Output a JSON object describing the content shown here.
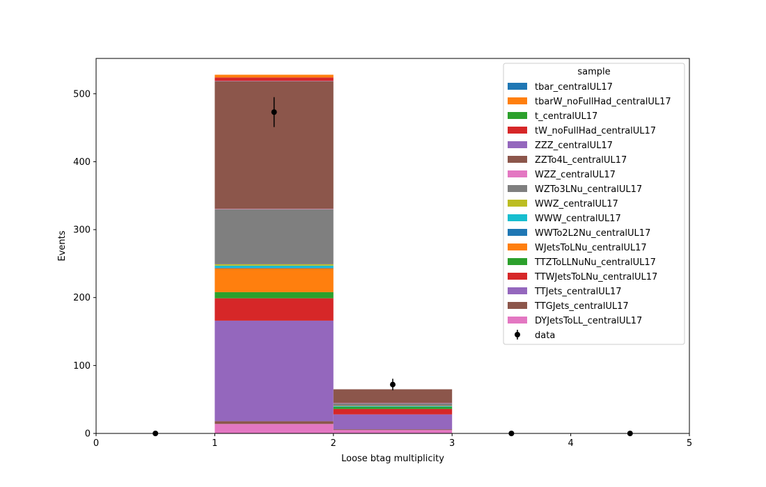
{
  "chart_data": {
    "type": "bar",
    "stacked": true,
    "xlabel": "Loose btag multiplicity",
    "ylabel": "Events",
    "xlim": [
      0,
      5
    ],
    "ylim": [
      0,
      552
    ],
    "xticks": [
      0,
      1,
      2,
      3,
      4,
      5
    ],
    "yticks": [
      0,
      100,
      200,
      300,
      400,
      500
    ],
    "grid": false,
    "bins": [
      [
        0,
        1
      ],
      [
        1,
        2
      ],
      [
        2,
        3
      ],
      [
        3,
        4
      ],
      [
        4,
        5
      ]
    ],
    "legend": {
      "title": "sample",
      "placement": "top-right"
    },
    "series": [
      {
        "name": "DYJetsToLL_centralUL17",
        "color": "#e377c2",
        "values": [
          0,
          14,
          5,
          0,
          0
        ]
      },
      {
        "name": "TTGJets_centralUL17",
        "color": "#8c564b",
        "values": [
          0,
          4,
          1,
          0,
          0
        ]
      },
      {
        "name": "TTJets_centralUL17",
        "color": "#9467bd",
        "values": [
          0,
          148,
          22,
          0,
          0
        ]
      },
      {
        "name": "TTWJetsToLNu_centralUL17",
        "color": "#d62728",
        "values": [
          0,
          33,
          8,
          0,
          0
        ]
      },
      {
        "name": "TTZToLLNuNu_centralUL17",
        "color": "#2ca02c",
        "values": [
          0,
          9,
          3,
          0,
          0
        ]
      },
      {
        "name": "WJetsToLNu_centralUL17",
        "color": "#ff7f0e",
        "values": [
          0,
          35,
          0,
          0,
          0
        ]
      },
      {
        "name": "WWTo2L2Nu_centralUL17",
        "color": "#1f77b4",
        "values": [
          0,
          1,
          0,
          0,
          0
        ]
      },
      {
        "name": "WWW_centralUL17",
        "color": "#17becf",
        "values": [
          0,
          3,
          1,
          0,
          0
        ]
      },
      {
        "name": "WWZ_centralUL17",
        "color": "#bcbd22",
        "values": [
          0,
          2,
          0.5,
          0,
          0
        ]
      },
      {
        "name": "WZTo3LNu_centralUL17",
        "color": "#7f7f7f",
        "values": [
          0,
          81,
          4,
          0,
          0
        ]
      },
      {
        "name": "WZZ_centralUL17",
        "color": "#e377c2",
        "values": [
          0,
          0.5,
          0.5,
          0,
          0
        ]
      },
      {
        "name": "ZZTo4L_centralUL17",
        "color": "#8c564b",
        "values": [
          0,
          188,
          20,
          0,
          0
        ]
      },
      {
        "name": "ZZZ_centralUL17",
        "color": "#9467bd",
        "values": [
          0,
          0.5,
          0,
          0,
          0
        ]
      },
      {
        "name": "tW_noFullHad_centralUL17",
        "color": "#d62728",
        "values": [
          0,
          5,
          0,
          0,
          0
        ]
      },
      {
        "name": "t_centralUL17",
        "color": "#2ca02c",
        "values": [
          0,
          0,
          0,
          0,
          0
        ]
      },
      {
        "name": "tbarW_noFullHad_centralUL17",
        "color": "#ff7f0e",
        "values": [
          0,
          4,
          0,
          0,
          0
        ]
      },
      {
        "name": "tbar_centralUL17",
        "color": "#1f77b4",
        "values": [
          0,
          0,
          0,
          0,
          0
        ]
      }
    ],
    "data": {
      "name": "data",
      "color": "#000000",
      "x": [
        0.5,
        1.5,
        2.5,
        3.5,
        4.5
      ],
      "y": [
        0,
        473,
        72,
        0,
        0
      ],
      "yerr": [
        0,
        22,
        8.5,
        0,
        0
      ]
    }
  }
}
